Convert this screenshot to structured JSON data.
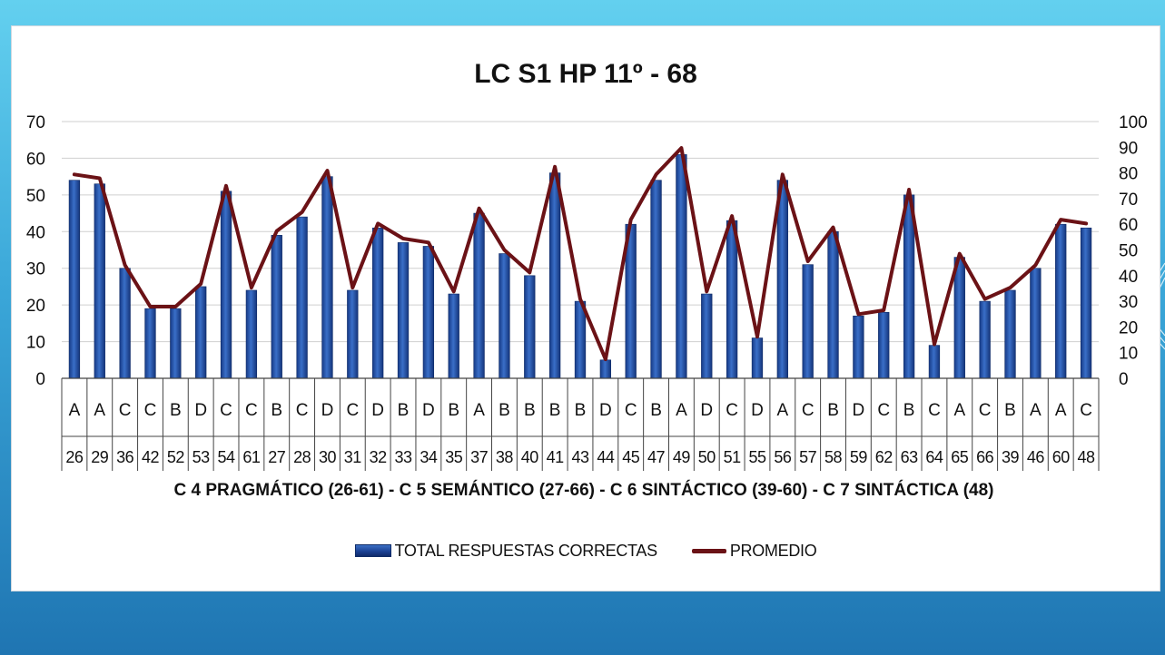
{
  "chart_data": {
    "type": "bar",
    "title": "LC S1 HP 11º - 68",
    "xlabel": "C 4 PRAGMÁTICO (26-61) - C 5 SEMÁNTICO (27-66) - C 6 SINTÁCTICO (39-60) - C 7 SINTÁCTICA (48)",
    "ylim": [
      0,
      70
    ],
    "y_ticks": [
      "0",
      "10",
      "20",
      "30",
      "40",
      "50",
      "60",
      "70"
    ],
    "y2lim": [
      0,
      100
    ],
    "y2_ticks": [
      "0",
      "10",
      "20",
      "30",
      "40",
      "50",
      "60",
      "70",
      "80",
      "90",
      "100"
    ],
    "grid": true,
    "legend_position": "bottom",
    "answers": [
      "A",
      "A",
      "C",
      "C",
      "B",
      "D",
      "C",
      "C",
      "B",
      "C",
      "D",
      "C",
      "D",
      "B",
      "D",
      "B",
      "A",
      "B",
      "B",
      "B",
      "B",
      "D",
      "C",
      "B",
      "A",
      "D",
      "C",
      "D",
      "A",
      "C",
      "B",
      "D",
      "C",
      "B",
      "C",
      "A",
      "C",
      "B",
      "A",
      "A",
      "C"
    ],
    "questions": [
      "26",
      "29",
      "36",
      "42",
      "52",
      "53",
      "54",
      "61",
      "27",
      "28",
      "30",
      "31",
      "32",
      "33",
      "34",
      "35",
      "37",
      "38",
      "40",
      "41",
      "43",
      "44",
      "45",
      "47",
      "49",
      "50",
      "51",
      "55",
      "56",
      "57",
      "58",
      "59",
      "62",
      "63",
      "64",
      "65",
      "66",
      "39",
      "46",
      "60",
      "48"
    ],
    "series": [
      {
        "name": "TOTAL RESPUESTAS CORRECTAS",
        "axis": "left",
        "color": "#1f4a9e",
        "values": [
          54,
          53,
          30,
          19,
          19,
          25,
          51,
          24,
          39,
          44,
          55,
          24,
          41,
          37,
          36,
          23,
          45,
          34,
          28,
          56,
          21,
          5,
          42,
          54,
          61,
          23,
          43,
          11,
          54,
          31,
          40,
          17,
          18,
          50,
          9,
          33,
          21,
          24,
          30,
          42,
          41
        ]
      },
      {
        "name": "PROMEDIO",
        "axis": "right",
        "color": "#6b1216",
        "values": [
          79.4,
          77.9,
          44.1,
          27.9,
          27.9,
          36.8,
          75,
          35.3,
          57.4,
          64.7,
          80.9,
          35.3,
          60.3,
          54.4,
          52.9,
          33.8,
          66.2,
          50,
          41.2,
          82.4,
          30.9,
          7.4,
          61.8,
          79.4,
          89.7,
          33.8,
          63.2,
          16.2,
          79.4,
          45.6,
          58.8,
          25,
          26.5,
          73.5,
          13.2,
          48.5,
          30.9,
          35.3,
          44.1,
          61.8,
          60.3
        ]
      }
    ]
  },
  "legend": {
    "bar_label": "TOTAL RESPUESTAS CORRECTAS",
    "line_label": "PROMEDIO"
  }
}
